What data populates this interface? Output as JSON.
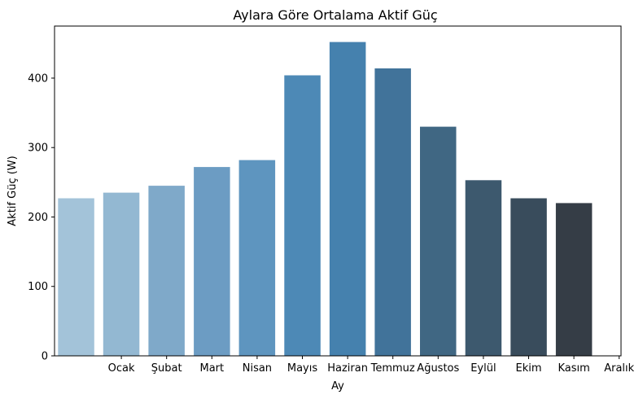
{
  "chart_data": {
    "type": "bar",
    "title": "Aylara Göre Ortalama Aktif Güç",
    "xlabel": "Ay",
    "ylabel": "Aktif Güç (W)",
    "tick_labels": [
      "Ocak",
      "Şubat",
      "Mart",
      "Nisan",
      "Mayıs",
      "Haziran",
      "Temmuz",
      "Ağustos",
      "Eylül",
      "Ekim",
      "Kasım",
      "Aralık"
    ],
    "values": [
      227,
      235,
      245,
      272,
      282,
      404,
      452,
      414,
      330,
      253,
      227,
      220
    ],
    "colors": [
      "#a3c3d9",
      "#93b8d2",
      "#7fa9c9",
      "#6c9cc3",
      "#5e95bf",
      "#4d89b6",
      "#4581ae",
      "#41739a",
      "#406783",
      "#3d596e",
      "#394c5c",
      "#353d46"
    ],
    "ylim": [
      0,
      475
    ],
    "yticks": [
      0,
      100,
      200,
      300,
      400
    ],
    "grid": false
  }
}
